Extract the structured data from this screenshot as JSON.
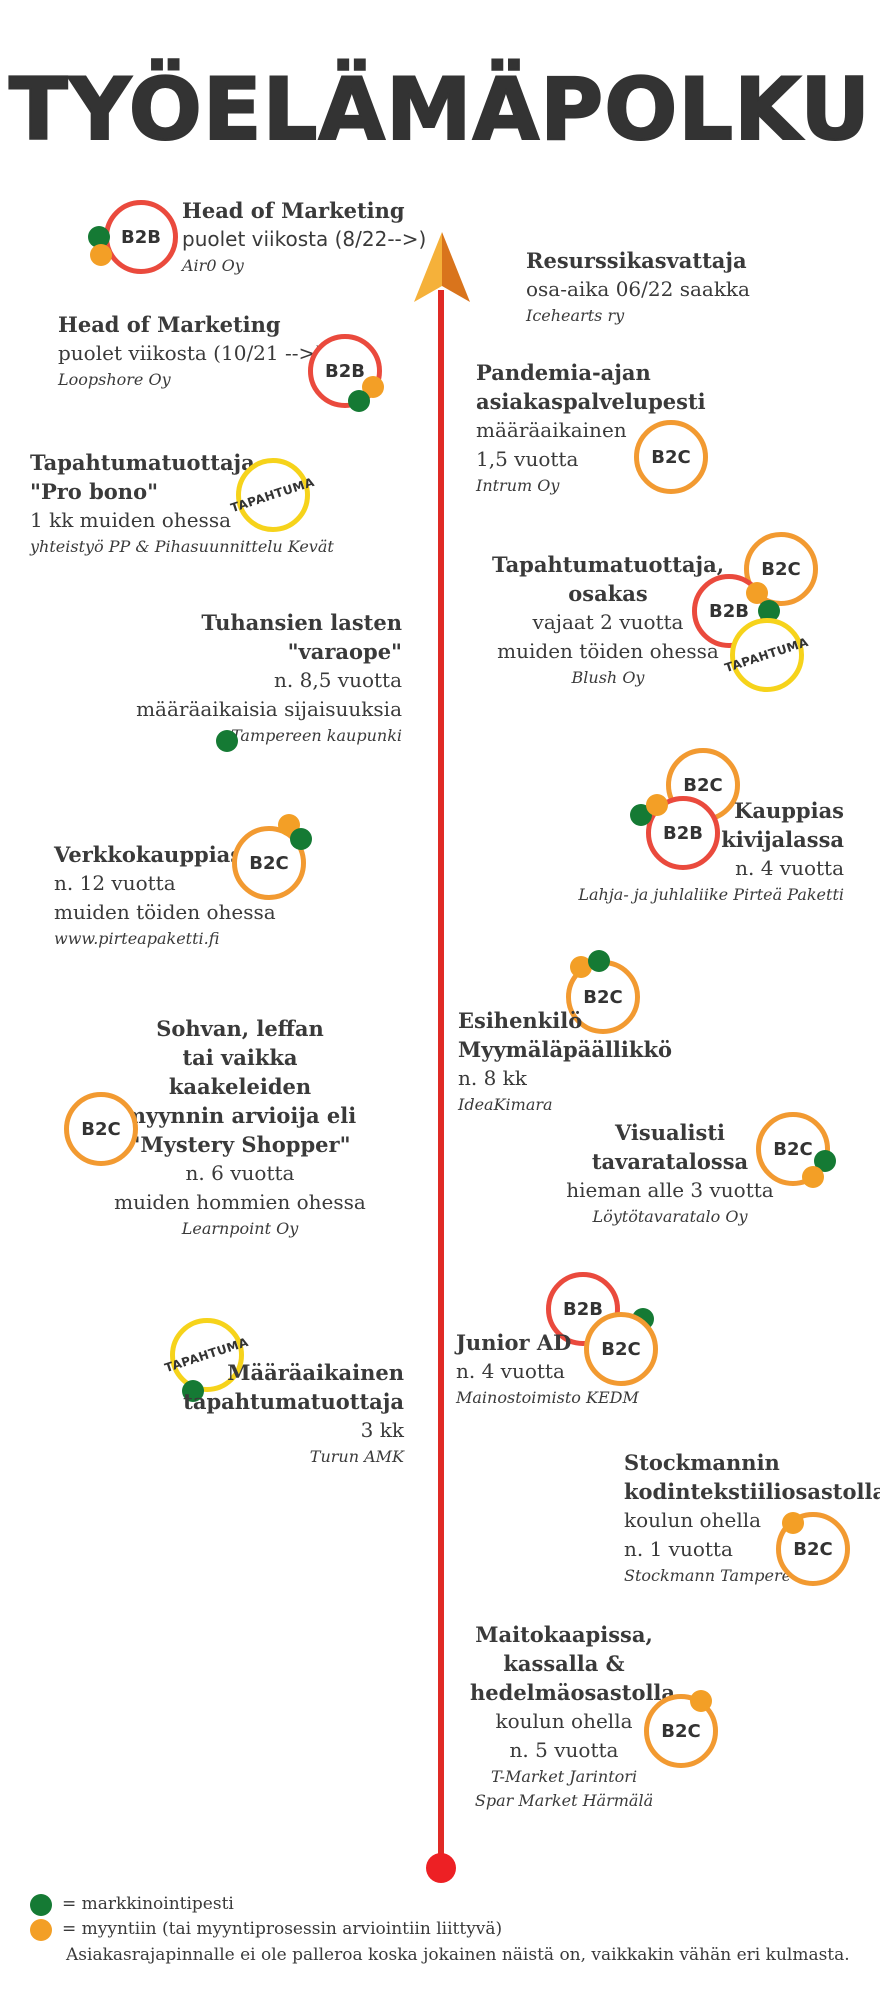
{
  "title": "TYÖELÄMÄPOLKU",
  "badges": {
    "b2b": "B2B",
    "b2c": "B2C",
    "tapahtuma": "TAPAHTUMA"
  },
  "entries": [
    {
      "title": "Head of Marketing",
      "lines": [
        "puolet viikosta (8/22-->)"
      ],
      "company": "Air0 Oy"
    },
    {
      "title": "Resurssikasvattaja",
      "lines": [
        "osa-aika 06/22 saakka"
      ],
      "company": "Icehearts ry"
    },
    {
      "title": "Head of Marketing",
      "lines": [
        "puolet viikosta (10/21 -->)"
      ],
      "company": "Loopshore Oy"
    },
    {
      "title": "Pandemia-ajan\nasiakaspalvelupesti",
      "lines": [
        "määräaikainen",
        "1,5 vuotta"
      ],
      "company": "Intrum Oy"
    },
    {
      "title": "Tapahtumatuottaja\n\"Pro bono\"",
      "lines": [
        "1 kk  muiden ohessa"
      ],
      "company": "yhteistyö PP & Pihasuunnittelu Kevät"
    },
    {
      "title": "Tapahtumatuottaja,\nosakas",
      "lines": [
        "vajaat 2 vuotta",
        "muiden töiden ohessa"
      ],
      "company": "Blush Oy"
    },
    {
      "title": "Tuhansien lasten\n\"varaope\"",
      "lines": [
        "n. 8,5 vuotta",
        "määräaikaisia sijaisuuksia"
      ],
      "company": "Tampereen kaupunki"
    },
    {
      "title": "Kauppias\nkivijalassa",
      "lines": [
        "n. 4 vuotta"
      ],
      "company": "Lahja- ja juhlaliike Pirteä Paketti"
    },
    {
      "title": "Verkkokauppias",
      "lines": [
        "n. 12 vuotta",
        "muiden töiden ohessa"
      ],
      "company": "www.pirteapaketti.fi"
    },
    {
      "title": "Esihenkilö\nMyymäläpäällikkö",
      "lines": [
        "n. 8 kk"
      ],
      "company": "IdeaKimara"
    },
    {
      "title": "Sohvan, leffan\ntai vaikka kaakeleiden\nmyynnin arvioija eli\n\"Mystery Shopper\"",
      "lines": [
        "n. 6 vuotta",
        "muiden hommien ohessa"
      ],
      "company": "Learnpoint Oy"
    },
    {
      "title": "Visualisti\ntavaratalossa",
      "lines": [
        "hieman alle 3 vuotta"
      ],
      "company": "Löytötavaratalo Oy"
    },
    {
      "title": "Junior AD",
      "lines": [
        "n. 4 vuotta"
      ],
      "company": "Mainostoimisto  KEDM"
    },
    {
      "title": "Määräaikainen\ntapahtumatuottaja",
      "lines": [
        "3 kk"
      ],
      "company": "Turun AMK"
    },
    {
      "title": "Stockmannin\nkodintekstiiliosastolla",
      "lines": [
        "koulun ohella",
        "n. 1 vuotta"
      ],
      "company": "Stockmann Tampere"
    },
    {
      "title": "Maitokaapissa,\nkassalla &\nhedelmäosastolla",
      "lines": [
        "koulun ohella",
        "n. 5 vuotta"
      ],
      "company": "T-Market Jarintori\nSpar Market Härmälä"
    }
  ],
  "legend": {
    "green": "= markkinointipesti",
    "orange": "= myyntiin (tai myyntiprosessin arviointiin liittyvä)",
    "note": "Asiakasrajapinnalle ei ole palleroa koska jokainen näistä on, vaikkakin vähän eri kulmasta."
  },
  "colors": {
    "green": "#157a34",
    "orange": "#f39f26",
    "red": "#e02a25",
    "yellow": "#f6d31b"
  }
}
